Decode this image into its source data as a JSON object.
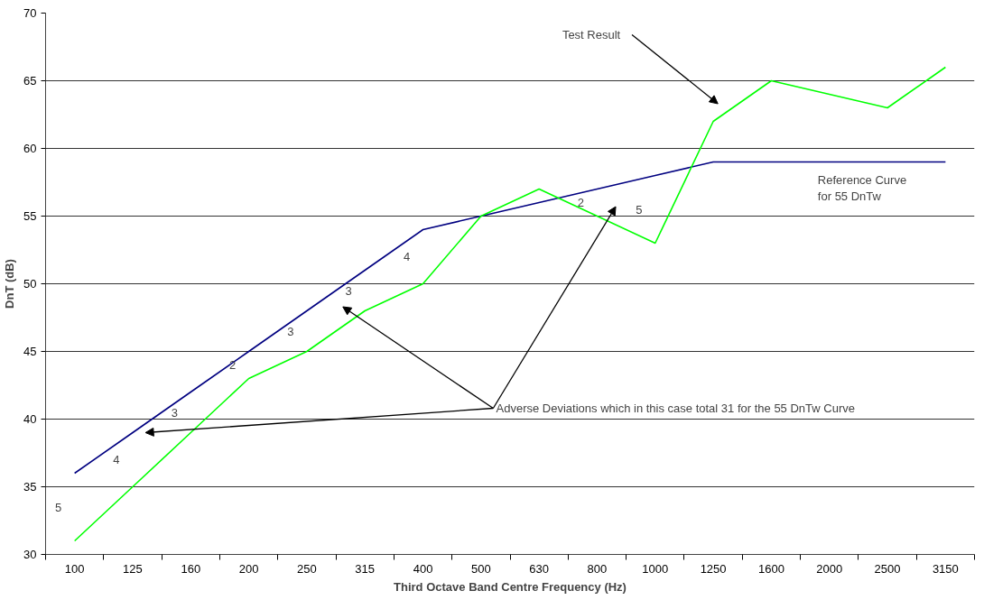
{
  "chart_data": {
    "type": "line",
    "xlabel": "Third Octave Band Centre Frequency (Hz)",
    "ylabel": "DnT (dB)",
    "categories": [
      "100",
      "125",
      "160",
      "200",
      "250",
      "315",
      "400",
      "500",
      "630",
      "800",
      "1000",
      "1250",
      "1600",
      "2000",
      "2500",
      "3150"
    ],
    "series": [
      {
        "name": "Reference Curve\nfor 55 DnTw",
        "color": "#000080",
        "values": [
          36,
          39,
          42,
          45,
          48,
          51,
          54,
          55,
          56,
          57,
          58,
          59,
          59,
          59,
          59,
          59
        ]
      },
      {
        "name": "Test Result",
        "color": "#00ff00",
        "values": [
          31,
          35,
          39,
          43,
          45,
          48,
          50,
          55,
          57,
          55,
          53,
          62,
          65,
          64,
          63,
          66
        ]
      }
    ],
    "ylim": [
      30,
      70
    ],
    "yticks": [
      30,
      35,
      40,
      45,
      50,
      55,
      60,
      65,
      70
    ],
    "grid": "y",
    "legend": false,
    "marker": "none",
    "line_style": "solid",
    "annotations": [
      "5",
      "4",
      "3",
      "2",
      "3",
      "3",
      "4",
      "2",
      "5",
      "Adverse Deviations which in this case total 31 for the 55 DnTw Curve"
    ]
  }
}
